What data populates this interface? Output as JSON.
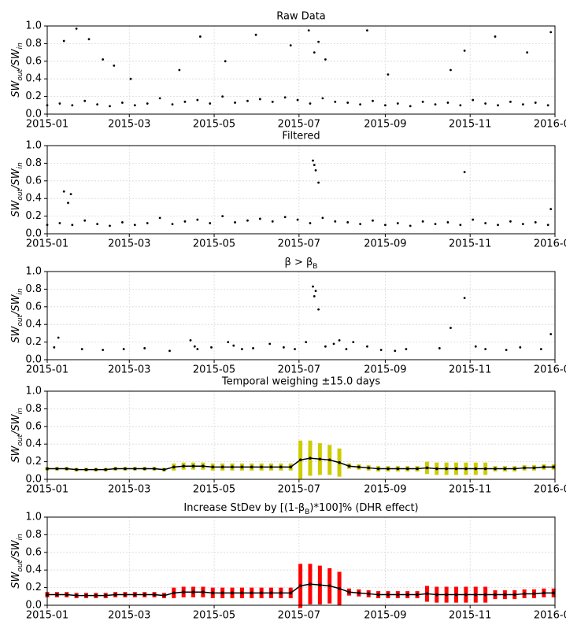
{
  "chart_data": [
    {
      "type": "scatter",
      "title": "Raw Data",
      "ylabel": [
        "SW",
        "out",
        "/SW",
        "in"
      ],
      "color": "#000000",
      "x": [
        0,
        9,
        18,
        27,
        36,
        45,
        54,
        63,
        72,
        81,
        90,
        99,
        108,
        117,
        126,
        135,
        144,
        153,
        162,
        171,
        180,
        189,
        198,
        207,
        216,
        225,
        234,
        243,
        252,
        261,
        270,
        279,
        288,
        297,
        306,
        315,
        324,
        333,
        342,
        351,
        360,
        12,
        21,
        30,
        40,
        48,
        60,
        95,
        110,
        128,
        150,
        175,
        188,
        192,
        195,
        200,
        230,
        245,
        290,
        300,
        322,
        345,
        362
      ],
      "values": [
        0.1,
        0.12,
        0.1,
        0.15,
        0.11,
        0.09,
        0.13,
        0.1,
        0.12,
        0.18,
        0.11,
        0.14,
        0.16,
        0.12,
        0.2,
        0.13,
        0.15,
        0.17,
        0.14,
        0.19,
        0.16,
        0.12,
        0.18,
        0.14,
        0.13,
        0.11,
        0.15,
        0.1,
        0.12,
        0.09,
        0.14,
        0.11,
        0.13,
        0.1,
        0.16,
        0.12,
        0.1,
        0.14,
        0.11,
        0.13,
        0.1,
        0.83,
        0.97,
        0.85,
        0.62,
        0.55,
        0.4,
        0.5,
        0.88,
        0.6,
        0.9,
        0.78,
        0.95,
        0.7,
        0.82,
        0.62,
        0.95,
        0.45,
        0.5,
        0.72,
        0.88,
        0.7,
        0.93
      ],
      "xlim": [
        0,
        365
      ],
      "ylim": [
        0,
        1
      ],
      "xticks": [
        {
          "value": 0,
          "label": "2015-01"
        },
        {
          "value": 59,
          "label": "2015-03"
        },
        {
          "value": 120,
          "label": "2015-05"
        },
        {
          "value": 181,
          "label": "2015-07"
        },
        {
          "value": 243,
          "label": "2015-09"
        },
        {
          "value": 304,
          "label": "2015-11"
        },
        {
          "value": 365,
          "label": "2016-01"
        }
      ],
      "yticks": [
        {
          "value": 0,
          "label": "0.0"
        },
        {
          "value": 0.2,
          "label": "0.2"
        },
        {
          "value": 0.4,
          "label": "0.4"
        },
        {
          "value": 0.6,
          "label": "0.6"
        },
        {
          "value": 0.8,
          "label": "0.8"
        },
        {
          "value": 1,
          "label": "1.0"
        }
      ],
      "grid": true
    },
    {
      "type": "scatter",
      "title": "Filtered",
      "ylabel": [
        "SW",
        "out",
        "/SW",
        "in"
      ],
      "color": "#000000",
      "x": [
        0,
        9,
        18,
        27,
        36,
        45,
        54,
        63,
        72,
        81,
        90,
        99,
        108,
        117,
        126,
        135,
        144,
        153,
        162,
        171,
        180,
        189,
        198,
        207,
        216,
        225,
        234,
        243,
        252,
        261,
        270,
        279,
        288,
        297,
        306,
        315,
        324,
        333,
        342,
        351,
        360,
        12,
        15,
        17,
        191,
        192,
        193,
        195,
        300,
        362
      ],
      "values": [
        0.1,
        0.12,
        0.1,
        0.15,
        0.11,
        0.09,
        0.13,
        0.1,
        0.12,
        0.18,
        0.11,
        0.14,
        0.16,
        0.12,
        0.2,
        0.13,
        0.15,
        0.17,
        0.14,
        0.19,
        0.16,
        0.12,
        0.18,
        0.14,
        0.13,
        0.11,
        0.15,
        0.1,
        0.12,
        0.09,
        0.14,
        0.11,
        0.13,
        0.1,
        0.16,
        0.12,
        0.1,
        0.14,
        0.11,
        0.13,
        0.1,
        0.48,
        0.35,
        0.45,
        0.83,
        0.78,
        0.72,
        0.58,
        0.7,
        0.28
      ],
      "xlim": [
        0,
        365
      ],
      "ylim": [
        0,
        1
      ],
      "xticks": [
        {
          "value": 0,
          "label": "2015-01"
        },
        {
          "value": 59,
          "label": "2015-03"
        },
        {
          "value": 120,
          "label": "2015-05"
        },
        {
          "value": 181,
          "label": "2015-07"
        },
        {
          "value": 243,
          "label": "2015-09"
        },
        {
          "value": 304,
          "label": "2015-11"
        },
        {
          "value": 365,
          "label": "2016-01"
        }
      ],
      "yticks": [
        {
          "value": 0,
          "label": "0.0"
        },
        {
          "value": 0.2,
          "label": "0.2"
        },
        {
          "value": 0.4,
          "label": "0.4"
        },
        {
          "value": 0.6,
          "label": "0.6"
        },
        {
          "value": 0.8,
          "label": "0.8"
        },
        {
          "value": 1,
          "label": "1.0"
        }
      ],
      "grid": true
    },
    {
      "type": "scatter",
      "title": [
        "β > β",
        "B"
      ],
      "ylabel": [
        "SW",
        "out",
        "/SW",
        "in"
      ],
      "color": "#000000",
      "x": [
        5,
        8,
        25,
        40,
        55,
        70,
        88,
        103,
        106,
        108,
        118,
        130,
        134,
        140,
        148,
        160,
        170,
        178,
        186,
        191,
        192,
        193,
        195,
        200,
        206,
        210,
        215,
        220,
        230,
        240,
        250,
        258,
        282,
        290,
        300,
        308,
        315,
        330,
        340,
        355,
        362
      ],
      "values": [
        0.14,
        0.25,
        0.12,
        0.11,
        0.12,
        0.13,
        0.1,
        0.22,
        0.15,
        0.12,
        0.14,
        0.2,
        0.16,
        0.12,
        0.13,
        0.18,
        0.14,
        0.12,
        0.2,
        0.83,
        0.72,
        0.78,
        0.57,
        0.15,
        0.18,
        0.22,
        0.12,
        0.2,
        0.15,
        0.11,
        0.1,
        0.12,
        0.13,
        0.36,
        0.7,
        0.15,
        0.12,
        0.11,
        0.14,
        0.12,
        0.29
      ],
      "xlim": [
        0,
        365
      ],
      "ylim": [
        0,
        1
      ],
      "xticks": [
        {
          "value": 0,
          "label": "2015-01"
        },
        {
          "value": 59,
          "label": "2015-03"
        },
        {
          "value": 120,
          "label": "2015-05"
        },
        {
          "value": 181,
          "label": "2015-07"
        },
        {
          "value": 243,
          "label": "2015-09"
        },
        {
          "value": 304,
          "label": "2015-11"
        },
        {
          "value": 365,
          "label": "2016-01"
        }
      ],
      "yticks": [
        {
          "value": 0,
          "label": "0.0"
        },
        {
          "value": 0.2,
          "label": "0.2"
        },
        {
          "value": 0.4,
          "label": "0.4"
        },
        {
          "value": 0.6,
          "label": "0.6"
        },
        {
          "value": 0.8,
          "label": "0.8"
        },
        {
          "value": 1,
          "label": "1.0"
        }
      ],
      "grid": true
    },
    {
      "type": "errorbar",
      "title": "Temporal weighing  ±15.0 days",
      "ylabel": [
        "SW",
        "out",
        "/SW",
        "in"
      ],
      "color": "#cccc00",
      "line_color": "#000000",
      "x": [
        0,
        7,
        14,
        21,
        28,
        35,
        42,
        49,
        56,
        63,
        70,
        77,
        84,
        91,
        98,
        105,
        112,
        119,
        126,
        133,
        140,
        147,
        154,
        161,
        168,
        175,
        182,
        189,
        196,
        203,
        210,
        217,
        224,
        231,
        238,
        245,
        252,
        259,
        266,
        273,
        280,
        287,
        294,
        301,
        308,
        315,
        322,
        329,
        336,
        343,
        350,
        357,
        364
      ],
      "values": [
        0.12,
        0.12,
        0.12,
        0.11,
        0.11,
        0.11,
        0.11,
        0.12,
        0.12,
        0.12,
        0.12,
        0.12,
        0.11,
        0.14,
        0.15,
        0.15,
        0.15,
        0.14,
        0.14,
        0.14,
        0.14,
        0.14,
        0.14,
        0.14,
        0.14,
        0.14,
        0.22,
        0.24,
        0.23,
        0.22,
        0.19,
        0.15,
        0.14,
        0.13,
        0.12,
        0.12,
        0.12,
        0.12,
        0.12,
        0.13,
        0.12,
        0.12,
        0.12,
        0.12,
        0.12,
        0.12,
        0.12,
        0.12,
        0.12,
        0.13,
        0.13,
        0.14,
        0.14
      ],
      "errors": [
        0.02,
        0.02,
        0.02,
        0.02,
        0.02,
        0.02,
        0.02,
        0.02,
        0.02,
        0.02,
        0.02,
        0.02,
        0.02,
        0.04,
        0.04,
        0.04,
        0.04,
        0.04,
        0.04,
        0.04,
        0.04,
        0.04,
        0.04,
        0.04,
        0.04,
        0.04,
        0.22,
        0.2,
        0.18,
        0.17,
        0.16,
        0.03,
        0.03,
        0.03,
        0.03,
        0.03,
        0.03,
        0.03,
        0.03,
        0.07,
        0.07,
        0.07,
        0.07,
        0.07,
        0.07,
        0.07,
        0.03,
        0.03,
        0.03,
        0.03,
        0.03,
        0.03,
        0.03
      ],
      "xlim": [
        0,
        365
      ],
      "ylim": [
        0,
        1
      ],
      "xticks": [
        {
          "value": 0,
          "label": "2015-01"
        },
        {
          "value": 59,
          "label": "2015-03"
        },
        {
          "value": 120,
          "label": "2015-05"
        },
        {
          "value": 181,
          "label": "2015-07"
        },
        {
          "value": 243,
          "label": "2015-09"
        },
        {
          "value": 304,
          "label": "2015-11"
        },
        {
          "value": 365,
          "label": "2016-01"
        }
      ],
      "yticks": [
        {
          "value": 0,
          "label": "0.0"
        },
        {
          "value": 0.2,
          "label": "0.2"
        },
        {
          "value": 0.4,
          "label": "0.4"
        },
        {
          "value": 0.6,
          "label": "0.6"
        },
        {
          "value": 0.8,
          "label": "0.8"
        },
        {
          "value": 1,
          "label": "1.0"
        }
      ],
      "grid": true
    },
    {
      "type": "errorbar",
      "title": [
        "Increase StDev by [(1-β",
        "B",
        ")*100]% (DHR effect)"
      ],
      "ylabel": [
        "SW",
        "out",
        "/SW",
        "in"
      ],
      "color": "#ff0000",
      "line_color": "#000000",
      "x": [
        0,
        7,
        14,
        21,
        28,
        35,
        42,
        49,
        56,
        63,
        70,
        77,
        84,
        91,
        98,
        105,
        112,
        119,
        126,
        133,
        140,
        147,
        154,
        161,
        168,
        175,
        182,
        189,
        196,
        203,
        210,
        217,
        224,
        231,
        238,
        245,
        252,
        259,
        266,
        273,
        280,
        287,
        294,
        301,
        308,
        315,
        322,
        329,
        336,
        343,
        350,
        357,
        364
      ],
      "values": [
        0.12,
        0.12,
        0.12,
        0.11,
        0.11,
        0.11,
        0.11,
        0.12,
        0.12,
        0.12,
        0.12,
        0.12,
        0.11,
        0.14,
        0.15,
        0.15,
        0.15,
        0.14,
        0.14,
        0.14,
        0.14,
        0.14,
        0.14,
        0.14,
        0.14,
        0.14,
        0.22,
        0.24,
        0.23,
        0.22,
        0.19,
        0.15,
        0.14,
        0.13,
        0.12,
        0.12,
        0.12,
        0.12,
        0.12,
        0.13,
        0.12,
        0.12,
        0.12,
        0.12,
        0.12,
        0.12,
        0.12,
        0.12,
        0.12,
        0.13,
        0.13,
        0.14,
        0.14
      ],
      "errors": [
        0.03,
        0.03,
        0.03,
        0.03,
        0.03,
        0.03,
        0.03,
        0.03,
        0.03,
        0.03,
        0.03,
        0.03,
        0.03,
        0.06,
        0.06,
        0.06,
        0.06,
        0.06,
        0.06,
        0.06,
        0.06,
        0.06,
        0.06,
        0.06,
        0.06,
        0.06,
        0.25,
        0.23,
        0.22,
        0.2,
        0.19,
        0.04,
        0.04,
        0.04,
        0.04,
        0.04,
        0.04,
        0.04,
        0.04,
        0.09,
        0.09,
        0.09,
        0.09,
        0.09,
        0.09,
        0.09,
        0.05,
        0.05,
        0.05,
        0.05,
        0.05,
        0.05,
        0.05
      ],
      "xlim": [
        0,
        365
      ],
      "ylim": [
        0,
        1
      ],
      "xticks": [
        {
          "value": 0,
          "label": "2015-01"
        },
        {
          "value": 59,
          "label": "2015-03"
        },
        {
          "value": 120,
          "label": "2015-05"
        },
        {
          "value": 181,
          "label": "2015-07"
        },
        {
          "value": 243,
          "label": "2015-09"
        },
        {
          "value": 304,
          "label": "2015-11"
        },
        {
          "value": 365,
          "label": "2016-01"
        }
      ],
      "yticks": [
        {
          "value": 0,
          "label": "0.0"
        },
        {
          "value": 0.2,
          "label": "0.2"
        },
        {
          "value": 0.4,
          "label": "0.4"
        },
        {
          "value": 0.6,
          "label": "0.6"
        },
        {
          "value": 0.8,
          "label": "0.8"
        },
        {
          "value": 1,
          "label": "1.0"
        }
      ],
      "grid": true
    }
  ]
}
